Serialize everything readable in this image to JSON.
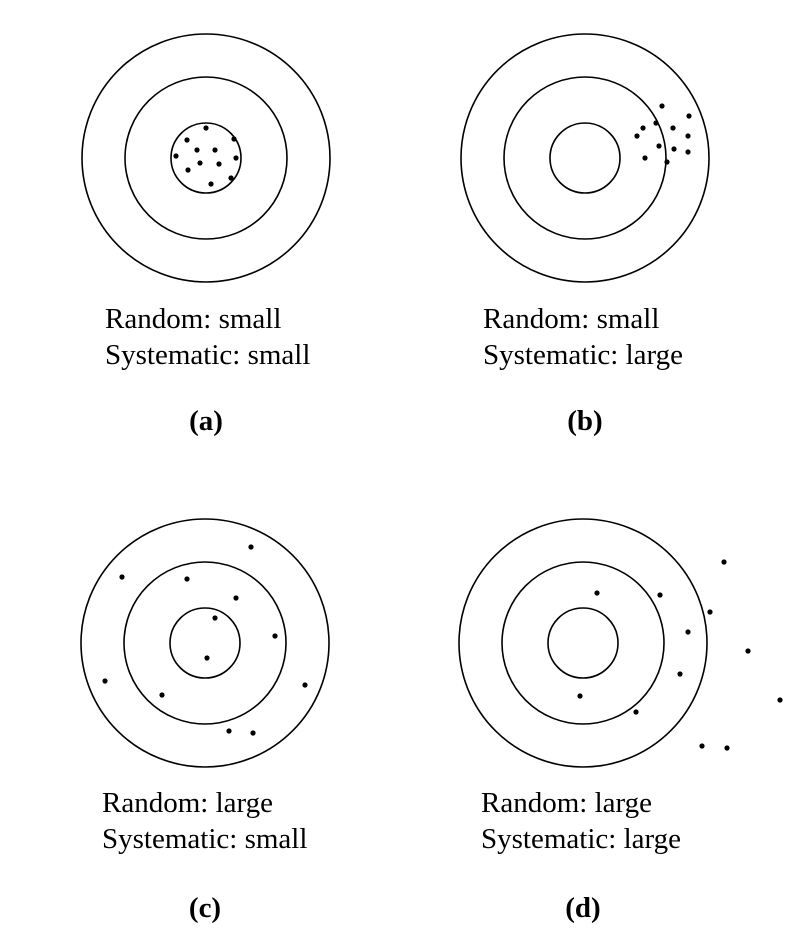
{
  "panels": [
    {
      "id": "a",
      "random_text": "Random: small",
      "systematic_text": "Systematic: small",
      "panel_label": "(a)",
      "hits": [
        [
          206,
          128
        ],
        [
          187,
          140
        ],
        [
          234,
          139
        ],
        [
          197,
          150
        ],
        [
          215,
          150
        ],
        [
          176,
          156
        ],
        [
          236,
          158
        ],
        [
          200,
          163
        ],
        [
          219,
          164
        ],
        [
          188,
          170
        ],
        [
          211,
          184
        ],
        [
          231,
          178
        ]
      ]
    },
    {
      "id": "b",
      "random_text": "Random: small",
      "systematic_text": "Systematic: large",
      "panel_label": "(b)",
      "hits": [
        [
          662,
          106
        ],
        [
          689,
          116
        ],
        [
          656,
          123
        ],
        [
          673,
          128
        ],
        [
          643,
          128
        ],
        [
          688,
          136
        ],
        [
          637,
          136
        ],
        [
          659,
          146
        ],
        [
          674,
          149
        ],
        [
          688,
          152
        ],
        [
          645,
          158
        ],
        [
          667,
          162
        ]
      ]
    },
    {
      "id": "c",
      "random_text": "Random: large",
      "systematic_text": "Systematic: small",
      "panel_label": "(c)",
      "hits": [
        [
          251,
          547
        ],
        [
          122,
          577
        ],
        [
          187,
          579
        ],
        [
          236,
          598
        ],
        [
          215,
          618
        ],
        [
          275,
          636
        ],
        [
          207,
          658
        ],
        [
          105,
          681
        ],
        [
          305,
          685
        ],
        [
          162,
          695
        ],
        [
          229,
          731
        ],
        [
          253,
          733
        ]
      ]
    },
    {
      "id": "d",
      "random_text": "Random: large",
      "systematic_text": "Systematic: large",
      "panel_label": "(d)",
      "hits": [
        [
          724,
          562
        ],
        [
          597,
          593
        ],
        [
          660,
          595
        ],
        [
          710,
          612
        ],
        [
          688,
          632
        ],
        [
          748,
          651
        ],
        [
          680,
          674
        ],
        [
          580,
          696
        ],
        [
          780,
          700
        ],
        [
          636,
          712
        ],
        [
          702,
          746
        ],
        [
          727,
          748
        ]
      ]
    }
  ]
}
